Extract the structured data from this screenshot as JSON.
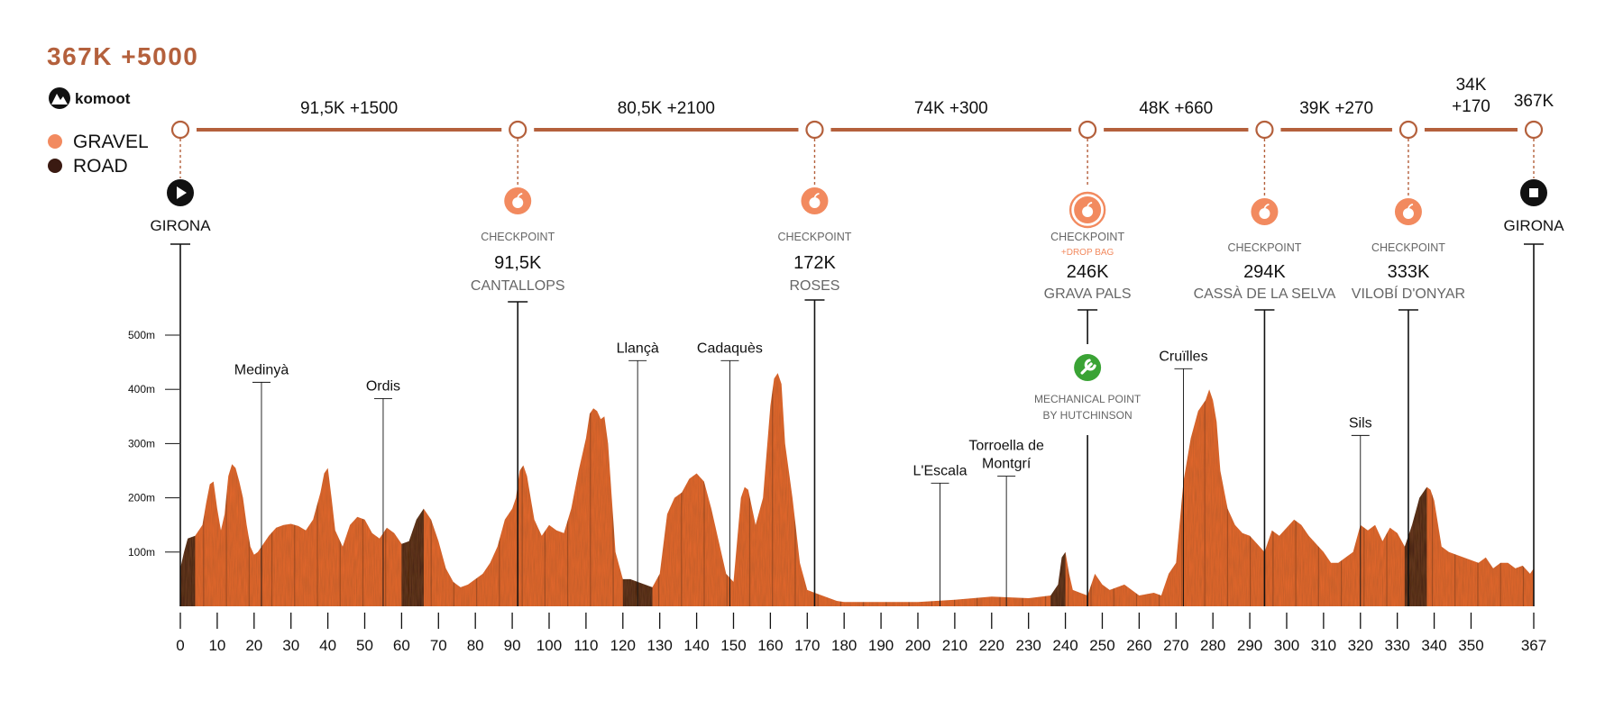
{
  "header": {
    "total": "367K +5000",
    "brand": "komoot"
  },
  "legend": [
    {
      "label": "GRAVEL",
      "color": "#F28A5F"
    },
    {
      "label": "ROAD",
      "color": "#3A1A12"
    }
  ],
  "colors": {
    "accent": "#B4603C",
    "gravel": "#E8692F",
    "road": "#3A1A12",
    "checkpoint": "#F28A5F",
    "mechanical": "#3AA335",
    "text": "#111111",
    "grey": "#666666"
  },
  "segments": [
    {
      "from_km": 0,
      "to_km": 91.5,
      "label": "91,5K +1500"
    },
    {
      "from_km": 91.5,
      "to_km": 172,
      "label": "80,5K +2100"
    },
    {
      "from_km": 172,
      "to_km": 246,
      "label": "74K +300"
    },
    {
      "from_km": 246,
      "to_km": 294,
      "label": "48K +660"
    },
    {
      "from_km": 294,
      "to_km": 333,
      "label": "39K +270"
    },
    {
      "from_km": 333,
      "to_km": 367,
      "label_line1": "34K",
      "label_line2": "+170"
    }
  ],
  "finish_total": "367K",
  "start": {
    "km": 0,
    "name": "GIRONA",
    "icon": "play-icon"
  },
  "finish": {
    "km": 367,
    "name": "GIRONA",
    "icon": "stop-icon"
  },
  "checkpoints": [
    {
      "km": 91.5,
      "caption": "CHECKPOINT",
      "distance": "91,5K",
      "name": "CANTALLOPS",
      "icon": "apple-icon"
    },
    {
      "km": 172,
      "caption": "CHECKPOINT",
      "distance": "172K",
      "name": "ROSES",
      "icon": "apple-icon"
    },
    {
      "km": 246,
      "caption": "CHECKPOINT",
      "extra": "+DROP BAG",
      "distance": "246K",
      "name": "GRAVA PALS",
      "icon": "apple-icon"
    },
    {
      "km": 294,
      "caption": "CHECKPOINT",
      "distance": "294K",
      "name": "CASSÀ DE LA SELVA",
      "icon": "apple-icon"
    },
    {
      "km": 333,
      "caption": "CHECKPOINT",
      "distance": "333K",
      "name": "VILOBÍ D'ONYAR",
      "icon": "apple-icon"
    }
  ],
  "mechanical": {
    "km": 246,
    "line1": "MECHANICAL POINT",
    "line2": "BY HUTCHINSON",
    "icon": "wrench-icon"
  },
  "chart_data": {
    "type": "area",
    "title": "",
    "xlabel": "",
    "ylabel": "",
    "xlim": [
      0,
      367
    ],
    "ylim": [
      0,
      500
    ],
    "x_ticks": [
      0,
      10,
      20,
      30,
      40,
      50,
      60,
      70,
      80,
      90,
      100,
      110,
      120,
      130,
      140,
      150,
      160,
      170,
      180,
      190,
      200,
      210,
      220,
      230,
      240,
      250,
      260,
      270,
      280,
      290,
      300,
      310,
      320,
      330,
      340,
      350,
      367
    ],
    "y_ticks": [
      {
        "value": 100,
        "label": "100m"
      },
      {
        "value": 200,
        "label": "200m"
      },
      {
        "value": 300,
        "label": "300m"
      },
      {
        "value": 400,
        "label": "400m"
      },
      {
        "value": 500,
        "label": "500m"
      }
    ],
    "series": [
      {
        "x": [
          0,
          1,
          2,
          4,
          6,
          7,
          8,
          9,
          10,
          11,
          12,
          13,
          14,
          15,
          16,
          17,
          18,
          19,
          20,
          21,
          22,
          24,
          26,
          28,
          30,
          32,
          34,
          36,
          38,
          39,
          40,
          41,
          42,
          44,
          46,
          48,
          50,
          52,
          54,
          56,
          58,
          60,
          62,
          64,
          66,
          68,
          70,
          72,
          74,
          76,
          78,
          80,
          82,
          84,
          86,
          88,
          90,
          91,
          92,
          93,
          94,
          95,
          96,
          98,
          100,
          102,
          104,
          106,
          108,
          110,
          111,
          112,
          113,
          114,
          115,
          116,
          117,
          118,
          120,
          122,
          124,
          126,
          128,
          130,
          132,
          134,
          136,
          138,
          140,
          142,
          144,
          146,
          148,
          150,
          152,
          153,
          154,
          156,
          158,
          160,
          161,
          162,
          163,
          164,
          166,
          168,
          170,
          172,
          174,
          176,
          178,
          180,
          190,
          200,
          210,
          220,
          230,
          236,
          238,
          239,
          240,
          241,
          242,
          244,
          246,
          248,
          250,
          252,
          256,
          260,
          264,
          266,
          268,
          270,
          272,
          274,
          276,
          278,
          279,
          280,
          281,
          282,
          284,
          286,
          288,
          290,
          292,
          294,
          296,
          298,
          300,
          302,
          304,
          306,
          308,
          310,
          312,
          314,
          316,
          318,
          320,
          322,
          324,
          326,
          328,
          330,
          332,
          334,
          336,
          338,
          339,
          340,
          342,
          344,
          346,
          348,
          350,
          352,
          354,
          356,
          358,
          360,
          362,
          364,
          366,
          367
        ],
        "y": [
          70,
          100,
          125,
          130,
          150,
          190,
          225,
          230,
          180,
          140,
          170,
          240,
          262,
          255,
          230,
          200,
          150,
          110,
          95,
          100,
          110,
          130,
          145,
          150,
          152,
          148,
          140,
          160,
          210,
          245,
          255,
          200,
          140,
          110,
          150,
          165,
          160,
          135,
          125,
          145,
          135,
          115,
          120,
          160,
          180,
          160,
          120,
          70,
          45,
          35,
          40,
          50,
          60,
          80,
          110,
          160,
          180,
          200,
          250,
          260,
          240,
          200,
          160,
          130,
          150,
          140,
          135,
          180,
          250,
          310,
          355,
          365,
          360,
          345,
          350,
          300,
          200,
          100,
          50,
          50,
          45,
          40,
          35,
          60,
          170,
          200,
          210,
          235,
          245,
          230,
          180,
          120,
          60,
          45,
          200,
          220,
          215,
          150,
          200,
          370,
          420,
          430,
          410,
          300,
          200,
          80,
          30,
          25,
          20,
          15,
          10,
          8,
          8,
          8,
          12,
          18,
          15,
          20,
          40,
          90,
          100,
          60,
          30,
          25,
          20,
          60,
          40,
          30,
          40,
          20,
          25,
          20,
          60,
          80,
          230,
          310,
          360,
          380,
          400,
          380,
          340,
          250,
          180,
          150,
          135,
          130,
          115,
          100,
          140,
          130,
          145,
          160,
          150,
          130,
          115,
          100,
          80,
          80,
          90,
          100,
          150,
          140,
          150,
          120,
          145,
          135,
          110,
          150,
          200,
          220,
          215,
          195,
          110,
          100,
          95,
          90,
          85,
          80,
          90,
          70,
          80,
          80,
          70,
          75,
          60,
          70
        ]
      }
    ],
    "surface": [
      {
        "from": 0,
        "to": 4,
        "type": "road"
      },
      {
        "from": 4,
        "to": 60,
        "type": "gravel"
      },
      {
        "from": 60,
        "to": 66,
        "type": "road"
      },
      {
        "from": 66,
        "to": 120,
        "type": "gravel"
      },
      {
        "from": 120,
        "to": 128,
        "type": "road"
      },
      {
        "from": 128,
        "to": 236,
        "type": "gravel"
      },
      {
        "from": 236,
        "to": 240,
        "type": "road"
      },
      {
        "from": 240,
        "to": 332,
        "type": "gravel"
      },
      {
        "from": 332,
        "to": 338,
        "type": "road"
      },
      {
        "from": 338,
        "to": 367,
        "type": "gravel"
      }
    ],
    "places": [
      {
        "km": 22,
        "name": "Medinyà",
        "top": 413
      },
      {
        "km": 55,
        "name": "Ordis",
        "top": 383
      },
      {
        "km": 124,
        "name": "Llançà",
        "top": 453
      },
      {
        "km": 149,
        "name": "Cadaquès",
        "top": 453
      },
      {
        "km": 206,
        "name": "L'Escala",
        "top": 227
      },
      {
        "km": 224,
        "name_line1": "Torroella de",
        "name_line2": "Montgrí",
        "top": 240
      },
      {
        "km": 272,
        "name": "Cruïlles",
        "top": 438
      },
      {
        "km": 320,
        "name": "Sils",
        "top": 315
      }
    ]
  }
}
